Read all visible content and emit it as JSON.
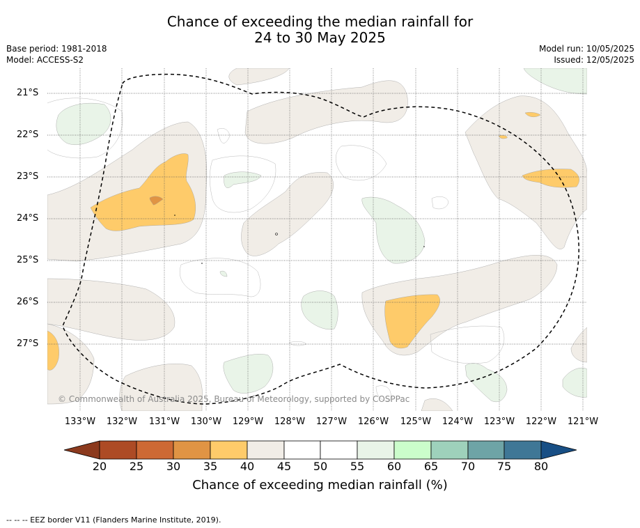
{
  "title": {
    "line1": "Chance of exceeding the median rainfall for",
    "line2": "24 to 30 May 2025"
  },
  "meta": {
    "base_period": "Base period: 1981-2018",
    "model": "Model: ACCESS-S2",
    "model_run": "Model run: 10/05/2025",
    "issued": "Issued: 12/05/2025"
  },
  "map": {
    "longitude_labels": [
      "133°W",
      "132°W",
      "131°W",
      "130°W",
      "129°W",
      "128°W",
      "127°W",
      "126°W",
      "125°W",
      "124°W",
      "123°W",
      "122°W",
      "121°W"
    ],
    "latitude_labels": [
      "21°S",
      "22°S",
      "23°S",
      "24°S",
      "25°S",
      "26°S",
      "27°S"
    ],
    "copyright": "© Commonwealth of Australia 2025, Bureau of Meteorology, supported by COSPPac",
    "colors": {
      "c40_45": "#f1ede7",
      "c35_40": "#fecb6a",
      "c30_35": "#e09444",
      "c55_60": "#e9f4e8",
      "eez_border": "#000000"
    }
  },
  "colorbar": {
    "ticks": [
      "20",
      "25",
      "30",
      "35",
      "40",
      "45",
      "50",
      "55",
      "60",
      "65",
      "70",
      "75",
      "80"
    ],
    "colors": [
      "#ad4b25",
      "#cd6934",
      "#e09444",
      "#fecb6a",
      "#f1ede7",
      "#ffffff",
      "#ffffff",
      "#e9f4e8",
      "#cbfdcb",
      "#9ed1bb",
      "#6ea4a6",
      "#3f7796"
    ],
    "low_extend_color": "#8c3a1e",
    "high_extend_color": "#184f85",
    "label": "Chance of exceeding median rainfall (%)"
  },
  "footer": "-- -- -- EEZ border V11 (Flanders Marine Institute, 2019)."
}
